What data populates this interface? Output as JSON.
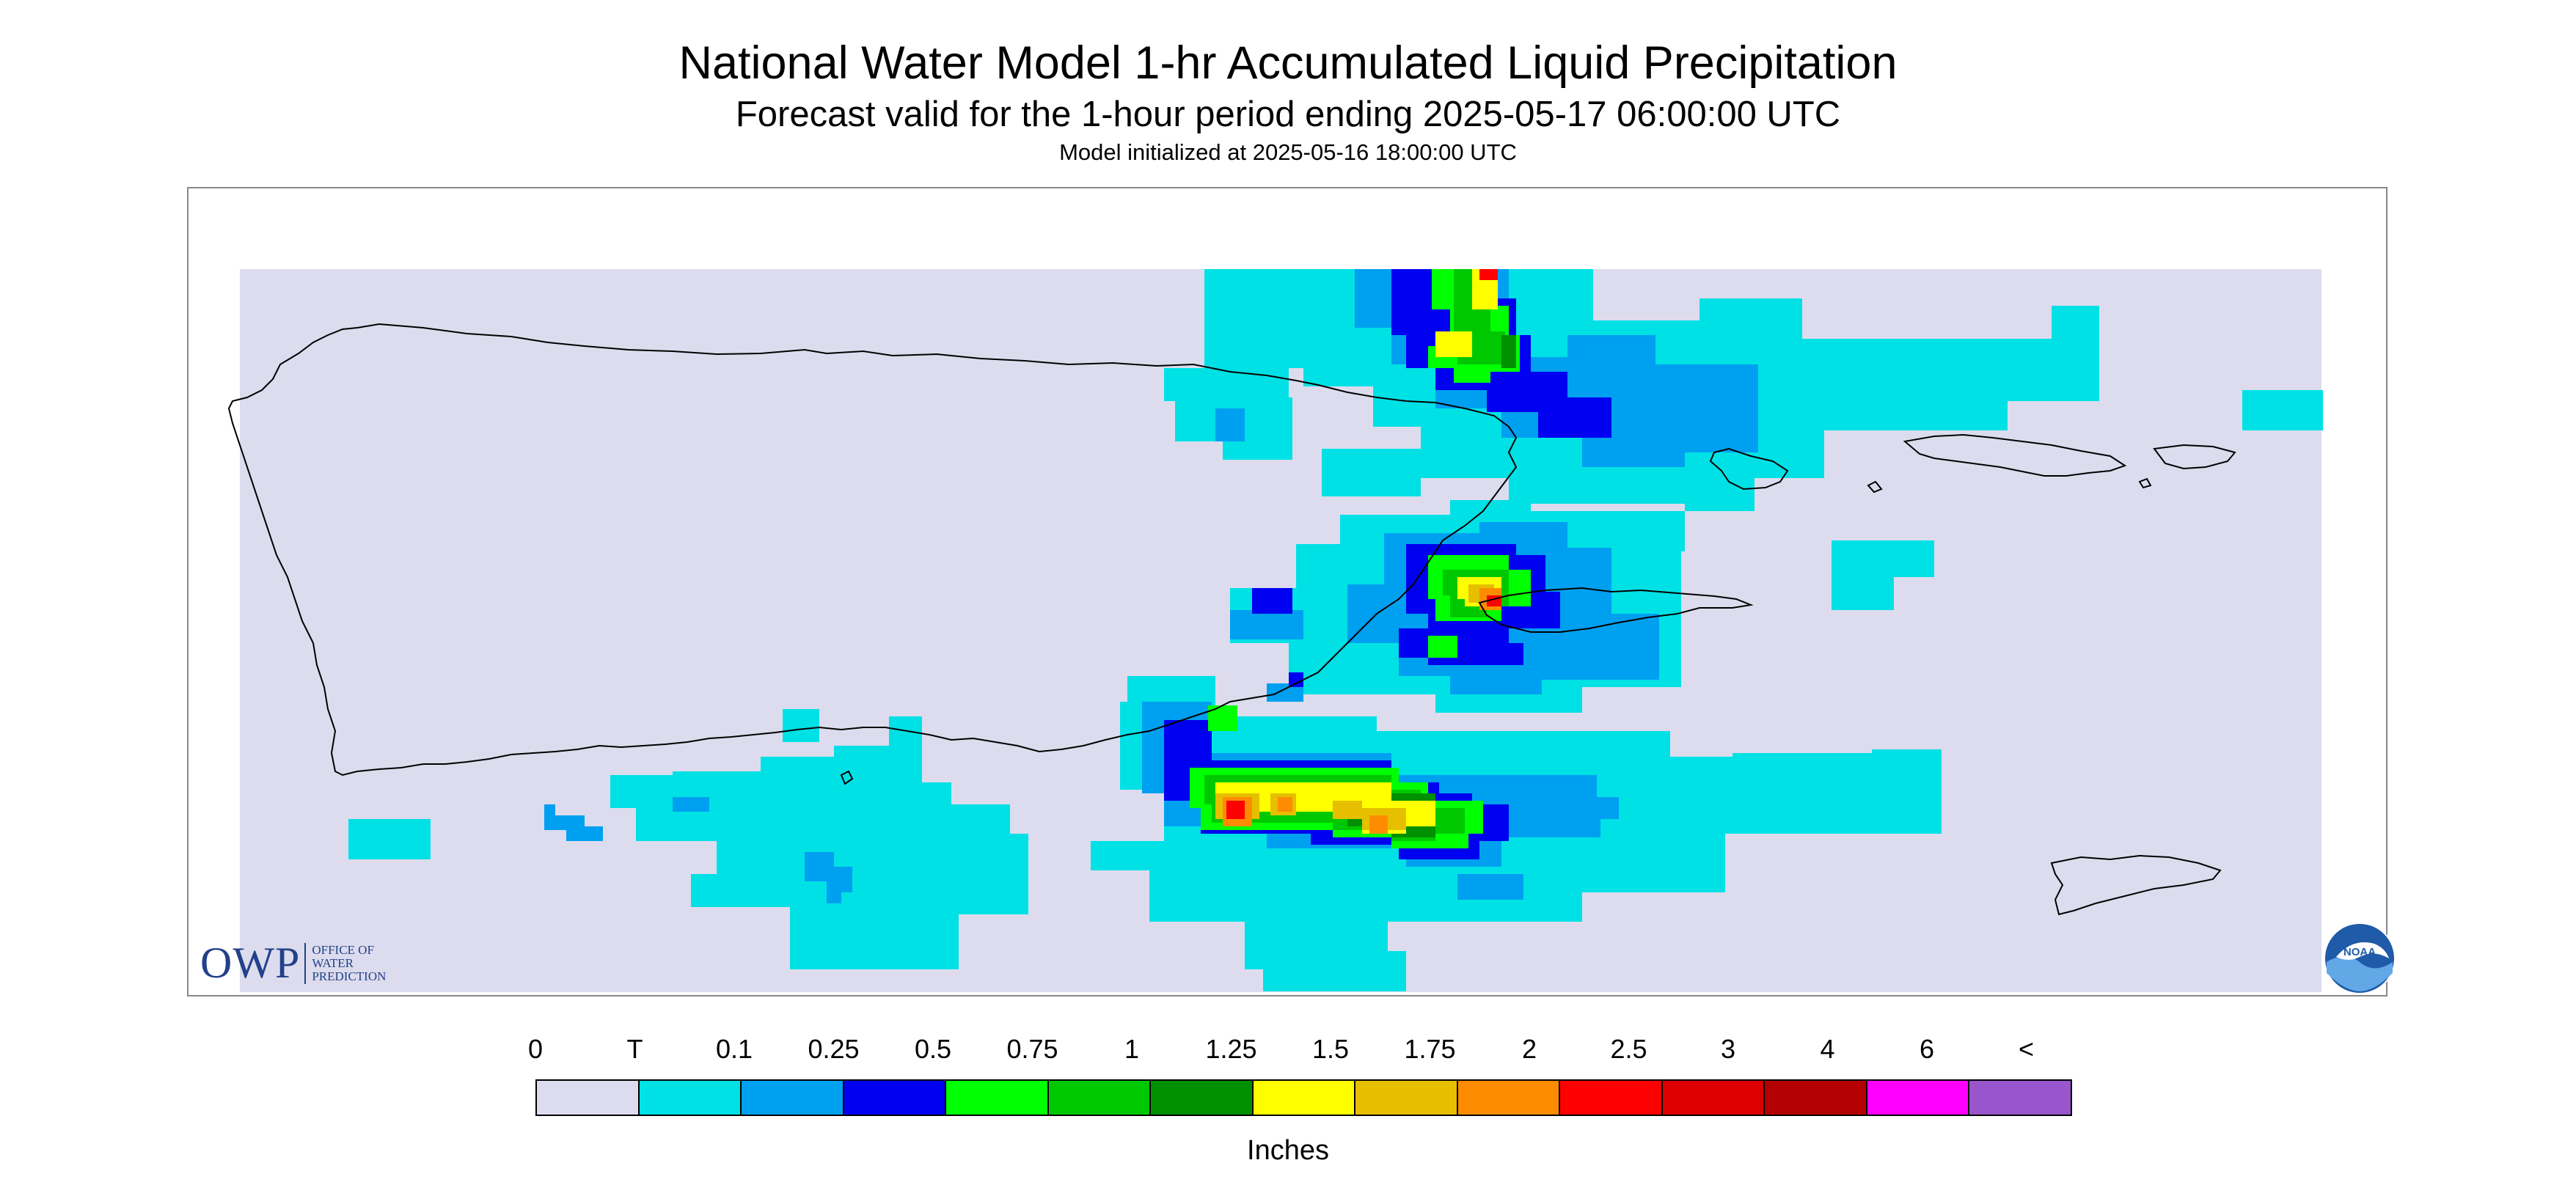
{
  "titles": {
    "main": "National Water Model 1-hr Accumulated Liquid Precipitation",
    "forecast": "Forecast valid for the 1-hour period ending 2025-05-17 06:00:00 UTC",
    "initialized": "Model initialized at 2025-05-16 18:00:00 UTC"
  },
  "logos": {
    "owp_letters": "OWP",
    "owp_text_lines": [
      "OFFICE OF",
      "WATER",
      "PREDICTION"
    ],
    "noaa_text": "NOAA"
  },
  "legend": {
    "labels": [
      "0",
      "T",
      "0.1",
      "0.25",
      "0.5",
      "0.75",
      "1",
      "1.25",
      "1.5",
      "1.75",
      "2",
      "2.5",
      "3",
      "4",
      "6",
      "<"
    ],
    "colors": [
      "#dcdcee",
      "#00e1e6",
      "#00a0f0",
      "#0000f0",
      "#00ff00",
      "#00c800",
      "#009000",
      "#ffff00",
      "#e6bf00",
      "#ff8c00",
      "#ff0000",
      "#dc0000",
      "#b40000",
      "#ff00ff",
      "#9955cc"
    ],
    "unit": "Inches"
  },
  "map": {
    "background_color": "#dcdcee",
    "coastline_color": "#000000"
  }
}
